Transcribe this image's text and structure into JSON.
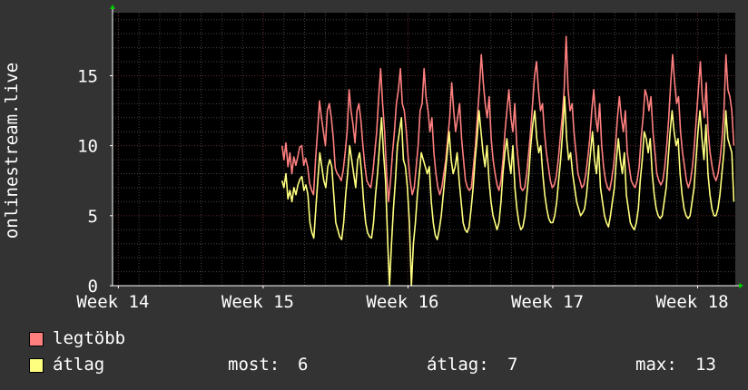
{
  "chart_data": {
    "type": "line",
    "ylabel": "onlinestream.live",
    "ylim": [
      0,
      19.5
    ],
    "yticks": [
      0,
      5,
      10,
      15
    ],
    "xticks": [
      "Week 14",
      "Week 15",
      "Week 16",
      "Week 17",
      "Week 18"
    ],
    "x_span_weeks": [
      13.96,
      18.26
    ],
    "data_start_week": 15.13,
    "grid": true,
    "colors": {
      "background": "#333333",
      "plot_bg": "#000000",
      "grid_minor": "#444444",
      "grid_major": "#6b2a2a",
      "axis": "#ffffff",
      "arrow": "#00cc00",
      "max_series": "#ff7f7f",
      "avg_series": "#ffff7f"
    },
    "series": [
      {
        "name": "legtöbb",
        "values": [
          10,
          9,
          10.2,
          8.5,
          9.5,
          8,
          9.2,
          8.6,
          9.2,
          9.9,
          10,
          8.6,
          9.1,
          8.5,
          7.3,
          6.8,
          6.5,
          9,
          11,
          13.2,
          12,
          11,
          10,
          12.5,
          13,
          12,
          10.5,
          8.4,
          8,
          7.8,
          7.5,
          8.2,
          9.5,
          11,
          14,
          12.5,
          11.5,
          10.2,
          12.5,
          13,
          11.8,
          10,
          8.6,
          7.5,
          7.2,
          7,
          8,
          9.5,
          11,
          13.5,
          15.5,
          13,
          11,
          8,
          6,
          7.5,
          9.5,
          11,
          13,
          14,
          15.5,
          13,
          12.5,
          11,
          9,
          7.5,
          6.5,
          7,
          8.5,
          10,
          12.5,
          13,
          15.5,
          13.5,
          12.5,
          11,
          12,
          9.5,
          8,
          7,
          6.5,
          7,
          8,
          9,
          10.5,
          12,
          14.5,
          12.5,
          11,
          12,
          13,
          10.5,
          9,
          7.5,
          7,
          6.8,
          7,
          8.5,
          10,
          12,
          14,
          16.5,
          14.5,
          13,
          12,
          13.5,
          10.5,
          9,
          8,
          7.2,
          6.8,
          7.5,
          9,
          11,
          12.5,
          14,
          12,
          11,
          13,
          10,
          8.5,
          7,
          6.8,
          7,
          8,
          9.5,
          11,
          13,
          15,
          16,
          14,
          12.5,
          13,
          11,
          9.5,
          8.5,
          7.5,
          7,
          7.2,
          7.8,
          9,
          10.5,
          12,
          14,
          17.8,
          14,
          12.5,
          13,
          11,
          9.5,
          8,
          7.5,
          7,
          7.2,
          8,
          9.2,
          10.5,
          12.5,
          14,
          12,
          11,
          13,
          10,
          8.5,
          7.5,
          7,
          6.8,
          7.5,
          8.5,
          10,
          12,
          13.5,
          12,
          11,
          12.5,
          9.5,
          8.5,
          7.5,
          7.2,
          7,
          7.5,
          8.5,
          10.5,
          12,
          14,
          13.5,
          12.5,
          13.5,
          11,
          9.5,
          8,
          7.5,
          7.2,
          7.5,
          8.5,
          10,
          12,
          14.5,
          16.5,
          14.5,
          13,
          13.5,
          11,
          9.5,
          8.5,
          7.5,
          7,
          7.5,
          8.5,
          10,
          12,
          14,
          16,
          13.5,
          12,
          14.5,
          11,
          9.5,
          8.5,
          7.8,
          7.5,
          8,
          9,
          10.5,
          12.5,
          16.5,
          14,
          13.5,
          12.5,
          10
        ]
      },
      {
        "name": "átlag",
        "values": [
          7.5,
          7,
          8,
          6.2,
          6.8,
          6,
          7,
          6.5,
          7.2,
          7.6,
          7.8,
          6.8,
          7.2,
          6.5,
          4.5,
          3.8,
          3.4,
          5.5,
          7.5,
          9.5,
          8.5,
          7.5,
          7,
          8.5,
          9,
          8.5,
          6.5,
          4.5,
          4,
          3.5,
          3.3,
          4.5,
          6.5,
          8,
          10,
          9,
          8,
          7,
          9,
          9.5,
          8,
          6,
          4.5,
          3.8,
          3.5,
          3.4,
          4.5,
          6.5,
          8,
          10,
          12,
          9.5,
          7.5,
          3.5,
          0,
          3,
          5.5,
          7.5,
          10,
          11,
          12,
          9,
          8.5,
          7,
          4.5,
          0,
          3,
          4.5,
          6.5,
          8,
          9.5,
          9,
          8.5,
          8,
          8.5,
          6,
          4.5,
          3.6,
          3.3,
          4,
          5,
          6.5,
          8,
          9.5,
          11,
          9,
          8,
          8.5,
          9.5,
          7.5,
          6,
          4.5,
          4,
          3.8,
          4.2,
          5.5,
          7,
          9,
          10.5,
          12.5,
          11,
          9.5,
          8.5,
          10,
          7.5,
          6,
          5,
          4.5,
          4,
          4.5,
          6,
          8,
          9.5,
          10.5,
          9,
          8,
          10,
          7,
          5.5,
          4.5,
          4,
          4.2,
          5,
          6.5,
          8,
          10,
          11.5,
          12.5,
          10.5,
          9.5,
          10,
          8,
          6.5,
          5.5,
          4.8,
          4.5,
          4.5,
          5,
          6,
          7.5,
          9,
          11,
          13.5,
          10.5,
          9,
          9.5,
          8,
          7,
          6,
          5.5,
          5,
          5.2,
          5.5,
          6.5,
          8,
          9.5,
          11,
          9,
          8,
          10,
          7,
          6,
          5,
          4.5,
          4.2,
          5,
          6,
          7,
          9,
          10.5,
          9,
          8,
          9.5,
          6.5,
          5.5,
          4.5,
          4.2,
          4,
          4.5,
          5.5,
          7.5,
          9,
          11,
          10.5,
          9.5,
          10.5,
          8,
          6.5,
          5.5,
          5,
          4.8,
          5,
          6,
          7,
          9,
          11,
          12.5,
          11,
          10,
          10.5,
          8,
          6.5,
          5.5,
          5,
          4.8,
          5,
          6,
          7,
          9,
          11,
          12.5,
          10.5,
          9,
          11.5,
          8,
          6.5,
          5.5,
          5,
          5,
          5.5,
          6.5,
          8,
          9.5,
          12.5,
          10.5,
          10,
          9.5,
          6
        ]
      }
    ]
  },
  "legend": {
    "items": [
      {
        "label": "legtöbb",
        "color": "#ff7f7f"
      },
      {
        "label": "átlag",
        "color": "#ffff7f"
      }
    ],
    "stats": {
      "now_label": "most:",
      "now_value": "6",
      "avg_label": "átlag:",
      "avg_value": "7",
      "max_label": "max:",
      "max_value": "13"
    }
  }
}
